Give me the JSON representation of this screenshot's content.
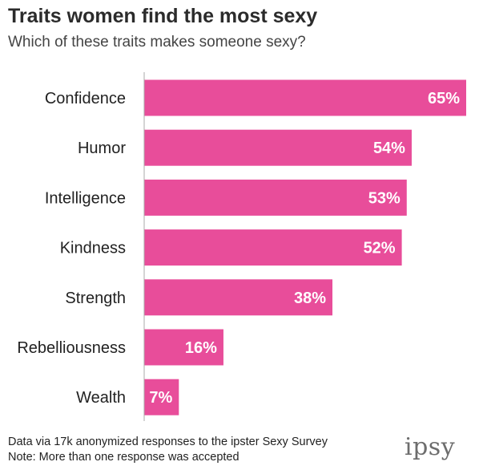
{
  "title": "Traits women find the most sexy",
  "subtitle": "Which of these traits makes someone sexy?",
  "footnotes": {
    "source": "Data via 17k anonymized responses to the ipster Sexy Survey",
    "note": "Note: More than one response was accepted"
  },
  "logo": "ipsy",
  "colors": {
    "bar": "#e84d9a",
    "axis": "#aaaaaa"
  },
  "chart_data": {
    "type": "bar",
    "orientation": "horizontal",
    "title": "Traits women find the most sexy",
    "subtitle": "Which of these traits makes someone sexy?",
    "categories": [
      "Confidence",
      "Humor",
      "Intelligence",
      "Kindness",
      "Strength",
      "Rebelliousness",
      "Wealth"
    ],
    "values": [
      65,
      54,
      53,
      52,
      38,
      16,
      7
    ],
    "value_labels": [
      "65%",
      "54%",
      "53%",
      "52%",
      "38%",
      "16%",
      "7%"
    ],
    "xlim": [
      0,
      65
    ],
    "grid": false,
    "legend": "none"
  }
}
